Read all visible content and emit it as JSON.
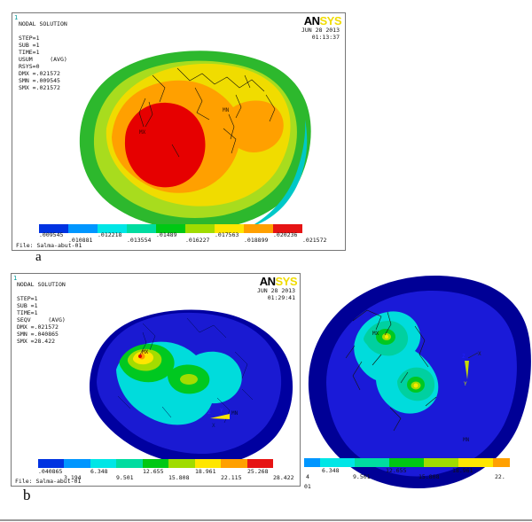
{
  "colors": {
    "colorbar": [
      "#0032E1",
      "#0096FF",
      "#00E6E6",
      "#00DCA0",
      "#00C814",
      "#A0DC00",
      "#FFE600",
      "#FFA000",
      "#E61414"
    ],
    "ansys_yellow": "#F0DC00",
    "max_red": "#E60000",
    "base_blue": "#1A1AD2",
    "dark_navy": "#000096"
  },
  "panel_a": {
    "plot_number": "1",
    "info_lines": [
      "NODAL SOLUTION",
      "",
      "STEP=1",
      "SUB =1",
      "TIME=1",
      "USUM     (AVG)",
      "RSYS=0",
      "DMX =.021572",
      "SMN =.009545",
      "SMX =.021572"
    ],
    "logo_an": "AN",
    "logo_sys": "SYS",
    "date": "JUN 28 2013",
    "time": "01:13:37",
    "mx_label": "MX",
    "mn_label": "MN",
    "colorbar_labels": [
      ".009545",
      ".010881",
      ".012218",
      ".013554",
      ".01489",
      ".016227",
      ".017563",
      ".018899",
      ".020236",
      ".021572"
    ],
    "file_line": "File: Salma-abut-01",
    "caption": "a"
  },
  "panel_b": {
    "plot_number": "1",
    "info_lines": [
      "NODAL SOLUTION",
      "",
      "STEP=1",
      "SUB =1",
      "TIME=1",
      "SEQV     (AVG)",
      "DMX =.021572",
      "SMN =.040865",
      "SMX =28.422"
    ],
    "logo_an": "AN",
    "logo_sys": "SYS",
    "date": "JUN 28 2013",
    "time": "01:29:41",
    "mx_label": "MX",
    "mn_label": "MN",
    "triad": {
      "z": "Z",
      "y": "Y",
      "x": "X"
    },
    "colorbar_labels": [
      ".040865",
      "3.194",
      "6.348",
      "9.501",
      "12.655",
      "15.808",
      "18.961",
      "22.115",
      "25.268",
      "28.422"
    ],
    "file_line": "File: Salma-abut-01",
    "caption": "b"
  },
  "right_view": {
    "mx_label": "MX",
    "mn_label": "MN",
    "triad": {
      "z": "Z",
      "x": "X",
      "y": "Y"
    },
    "colorbar_segments": [
      {
        "color": "#0096FF",
        "w": 18
      },
      {
        "color": "#00E6E6",
        "w": 39
      },
      {
        "color": "#00DCA0",
        "w": 39
      },
      {
        "color": "#00C814",
        "w": 39
      },
      {
        "color": "#A0DC00",
        "w": 39
      },
      {
        "color": "#FFE600",
        "w": 39
      },
      {
        "color": "#FFA000",
        "w": 19
      }
    ],
    "colorbar_labels_top": [
      "6.348",
      "12.655",
      "18.961"
    ],
    "colorbar_labels_bottom": [
      "9.501",
      "15.808",
      "22."
    ],
    "cropped_label_tail": "4",
    "cropped_file_tail": "01"
  }
}
